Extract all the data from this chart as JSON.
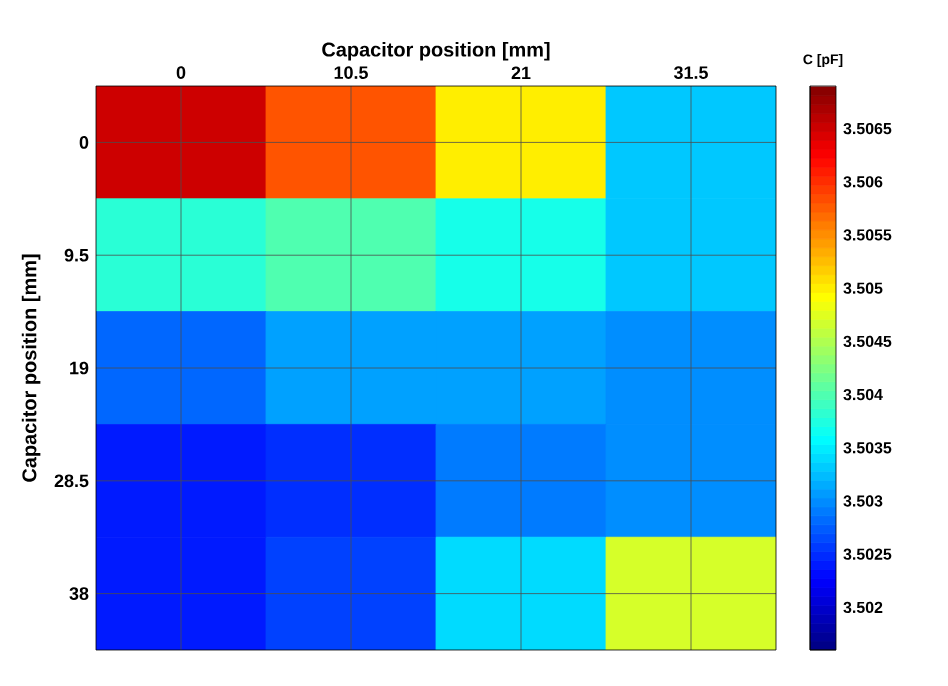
{
  "chart_data": {
    "type": "heatmap",
    "xlabel": "Capacitor position [mm]",
    "ylabel": "Capacitor position [mm]",
    "clabel": "C [pF]",
    "categories": [
      "0",
      "10.5",
      "21",
      "31.5"
    ],
    "y_categories": [
      "0",
      "9.5",
      "19",
      "28.5",
      "38"
    ],
    "cells": [
      [
        3.5065,
        3.5058,
        3.505,
        3.5033
      ],
      [
        3.5038,
        3.504,
        3.5037,
        3.5033
      ],
      [
        3.5028,
        3.5031,
        3.5031,
        3.503
      ],
      [
        3.5024,
        3.5025,
        3.5029,
        3.503
      ],
      [
        3.5024,
        3.5026,
        3.5034,
        3.5047
      ]
    ],
    "clim": [
      3.5016,
      3.5069
    ],
    "cticks": [
      3.502,
      3.5025,
      3.503,
      3.5035,
      3.504,
      3.5045,
      3.505,
      3.5055,
      3.506,
      3.5065
    ],
    "grid": true
  }
}
